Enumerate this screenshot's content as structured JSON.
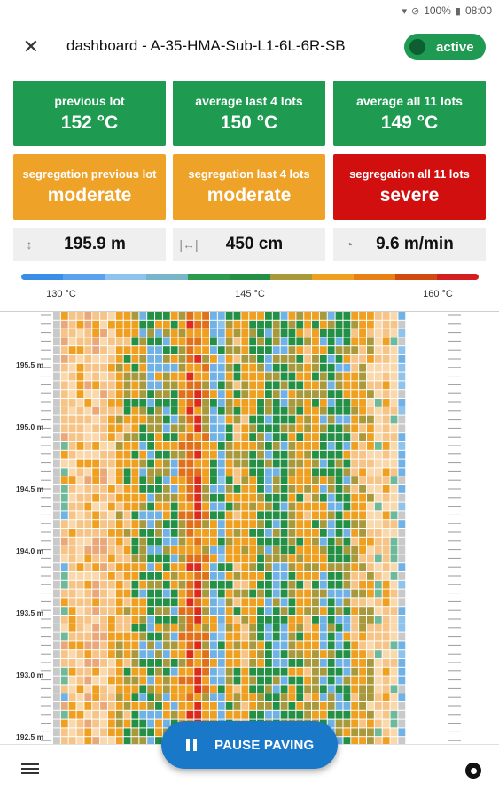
{
  "status_bar": {
    "battery": "100%",
    "time": "08:00",
    "icons": [
      "wifi-icon",
      "dnd-icon",
      "battery-icon"
    ]
  },
  "header": {
    "title": "dashboard - A-35-HMA-Sub-L1-6L-6R-SB",
    "status": "active",
    "close_icon": "close-icon"
  },
  "temperature_tiles": [
    {
      "label": "previous lot",
      "value": "152 °C",
      "color": "#1e9a51"
    },
    {
      "label": "average last 4 lots",
      "value": "150 °C",
      "color": "#1e9a51"
    },
    {
      "label": "average all 11 lots",
      "value": "149 °C",
      "color": "#1e9a51"
    }
  ],
  "segregation_tiles": [
    {
      "label": "segregation previous lot",
      "value": "moderate",
      "color": "#eea227"
    },
    {
      "label": "segregation last 4 lots",
      "value": "moderate",
      "color": "#eea227"
    },
    {
      "label": "segregation all 11 lots",
      "value": "severe",
      "color": "#d10f0f"
    }
  ],
  "info": [
    {
      "icon": "vertical-distance-icon",
      "value": "195.9 m"
    },
    {
      "icon": "width-icon",
      "value": "450 cm"
    },
    {
      "icon": "speedometer-icon",
      "value": "9.6 m/min"
    }
  ],
  "legend": {
    "colors": [
      "#3a8ee6",
      "#5aa2ee",
      "#8ec3ee",
      "#79b5c8",
      "#2d9b4f",
      "#239046",
      "#a89a3c",
      "#f0a020",
      "#e88018",
      "#d14a10",
      "#d31f1f"
    ],
    "ticks": [
      "130 °C",
      "145 °C",
      "160 °C"
    ]
  },
  "heatmap": {
    "y_labels": [
      "195.5 m",
      "195.0 m",
      "194.5 m",
      "194.0 m",
      "193.5 m",
      "193.0 m",
      "192.5 m"
    ],
    "colors": {
      "blue": "#70b2e6",
      "light_blue": "#8ec3ee",
      "green": "#239046",
      "teal": "#6fb99b",
      "olive": "#a89a3c",
      "orange": "#f0a020",
      "light_orange": "#f6c486",
      "pale": "#f9d9ac",
      "salmon": "#eaa87a",
      "red": "#dd2a1c",
      "dark_orange": "#e0701a",
      "gray": "#c9c9c9"
    }
  },
  "actions": {
    "pause_label": "PAUSE PAVING",
    "menu_icon": "menu-icon",
    "record_icon": "record-icon"
  }
}
